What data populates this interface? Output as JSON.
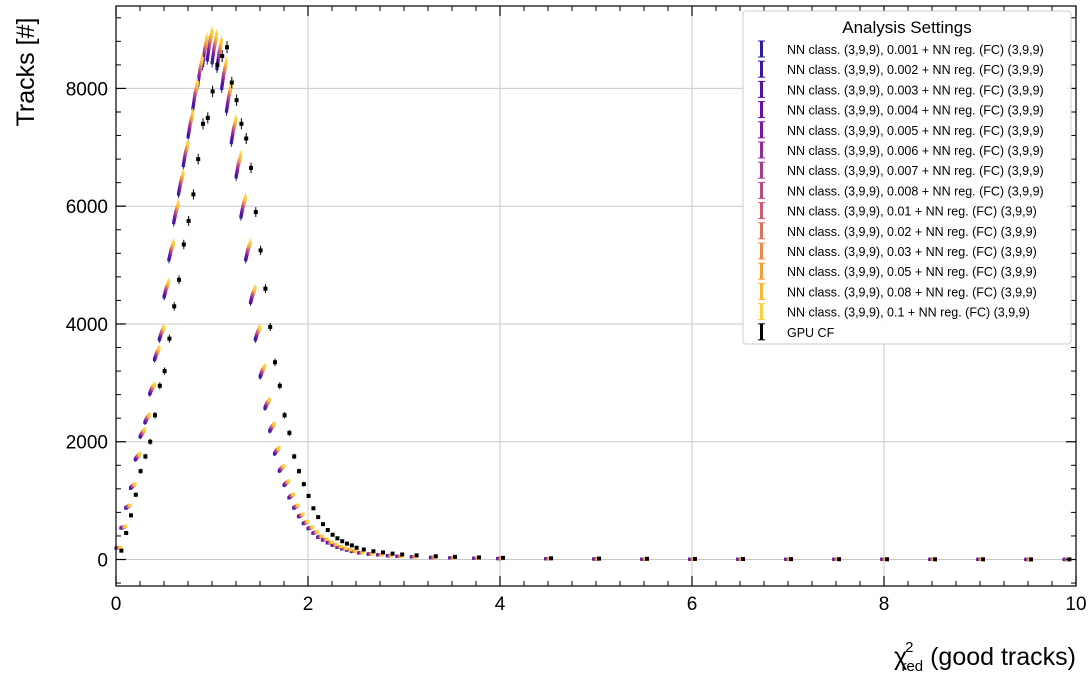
{
  "chart_data": {
    "type": "scatter",
    "xlabel_main": "χ",
    "xlabel_sup": "2",
    "xlabel_sub": "red",
    "xlabel_rest": " (good tracks)",
    "ylabel": "Tracks [#]",
    "xlim": [
      0,
      10
    ],
    "ylim": [
      -450,
      9400
    ],
    "xticks": [
      0,
      2,
      4,
      6,
      8,
      10
    ],
    "yticks": [
      0,
      2000,
      4000,
      6000,
      8000
    ],
    "xtick_labels": [
      "0",
      "2",
      "4",
      "6",
      "8",
      "10"
    ],
    "ytick_labels": [
      "0",
      "2000",
      "4000",
      "6000",
      "8000"
    ],
    "grid": true,
    "legend": {
      "title": "Analysis Settings",
      "placement": "top-right"
    },
    "reference_series": {
      "name": "GPU CF",
      "color": "#000000",
      "x": [
        0.025,
        0.075,
        0.125,
        0.175,
        0.225,
        0.275,
        0.325,
        0.375,
        0.425,
        0.475,
        0.525,
        0.575,
        0.625,
        0.675,
        0.725,
        0.775,
        0.825,
        0.875,
        0.925,
        0.975,
        1.025,
        1.075,
        1.125,
        1.175,
        1.225,
        1.275,
        1.325,
        1.375,
        1.425,
        1.475,
        1.525,
        1.575,
        1.625,
        1.675,
        1.725,
        1.775,
        1.825,
        1.875,
        1.925,
        1.975,
        2.025,
        2.075,
        2.125,
        2.175,
        2.225,
        2.275,
        2.325,
        2.375,
        2.425,
        2.475,
        2.55,
        2.65,
        2.75,
        2.85,
        2.95,
        3.1,
        3.3,
        3.5,
        3.75,
        4.0,
        4.5,
        5.0,
        5.5,
        6.0,
        6.5,
        7.0,
        7.5,
        8.0,
        8.5,
        9.0,
        9.5,
        9.9
      ],
      "values": [
        150,
        450,
        750,
        1100,
        1500,
        1750,
        2000,
        2450,
        2950,
        3200,
        3750,
        4300,
        4750,
        5350,
        5750,
        6200,
        6800,
        7400,
        7500,
        7950,
        8400,
        8550,
        8700,
        8100,
        7800,
        7400,
        7150,
        6650,
        5900,
        5250,
        4600,
        3950,
        3350,
        2950,
        2450,
        2150,
        1750,
        1500,
        1280,
        1080,
        870,
        720,
        600,
        500,
        420,
        360,
        310,
        270,
        240,
        200,
        170,
        140,
        120,
        100,
        85,
        70,
        55,
        45,
        35,
        28,
        20,
        15,
        12,
        10,
        8,
        6,
        5,
        4,
        3,
        3,
        2,
        2
      ]
    },
    "nn_x": [
      0.025,
      0.075,
      0.125,
      0.175,
      0.225,
      0.275,
      0.325,
      0.375,
      0.425,
      0.475,
      0.525,
      0.575,
      0.625,
      0.675,
      0.725,
      0.775,
      0.825,
      0.875,
      0.925,
      0.975,
      1.025,
      1.075,
      1.125,
      1.175,
      1.225,
      1.275,
      1.325,
      1.375,
      1.425,
      1.475,
      1.525,
      1.575,
      1.625,
      1.675,
      1.725,
      1.775,
      1.825,
      1.875,
      1.925,
      1.975,
      2.025,
      2.075,
      2.125,
      2.175,
      2.225,
      2.275,
      2.325,
      2.375,
      2.425,
      2.475,
      2.55,
      2.65,
      2.75,
      2.85,
      2.95,
      3.1,
      3.3,
      3.5,
      3.75,
      4.0,
      4.5,
      5.0,
      5.5,
      6.0,
      6.5,
      7.0,
      7.5,
      8.0,
      8.5,
      9.0,
      9.5,
      9.9
    ],
    "nn_values": [
      200,
      550,
      900,
      1250,
      1750,
      2150,
      2400,
      2900,
      3500,
      3850,
      4600,
      5250,
      5900,
      6400,
      6900,
      7400,
      7900,
      8300,
      8650,
      8750,
      8700,
      8600,
      8250,
      7850,
      7300,
      6700,
      6000,
      5250,
      4500,
      3850,
      3200,
      2650,
      2250,
      1850,
      1550,
      1300,
      1080,
      900,
      750,
      630,
      540,
      460,
      390,
      340,
      290,
      250,
      215,
      185,
      165,
      140,
      115,
      95,
      80,
      67,
      56,
      45,
      35,
      28,
      22,
      17,
      12,
      9,
      7,
      6,
      5,
      4,
      3,
      3,
      2,
      2,
      1,
      1
    ],
    "series": [
      {
        "name": "NN class. (3,9,9), 0.001 + NN reg. (FC) (3,9,9)",
        "color": "#2b1f9e",
        "scale": 0.97
      },
      {
        "name": "NN class. (3,9,9), 0.002 + NN reg. (FC) (3,9,9)",
        "color": "#3f179f",
        "scale": 0.975
      },
      {
        "name": "NN class. (3,9,9), 0.003 + NN reg. (FC) (3,9,9)",
        "color": "#5412a2",
        "scale": 0.98
      },
      {
        "name": "NN class. (3,9,9), 0.004 + NN reg. (FC) (3,9,9)",
        "color": "#6a10a6",
        "scale": 0.985
      },
      {
        "name": "NN class. (3,9,9), 0.005 + NN reg. (FC) (3,9,9)",
        "color": "#7d17a4",
        "scale": 0.99
      },
      {
        "name": "NN class. (3,9,9), 0.006 + NN reg. (FC) (3,9,9)",
        "color": "#922a9c",
        "scale": 0.995
      },
      {
        "name": "NN class. (3,9,9), 0.007 + NN reg. (FC) (3,9,9)",
        "color": "#a53a8f",
        "scale": 1.0
      },
      {
        "name": "NN class. (3,9,9), 0.008 + NN reg. (FC) (3,9,9)",
        "color": "#b84b80",
        "scale": 1.003
      },
      {
        "name": "NN class. (3,9,9), 0.01 + NN reg. (FC) (3,9,9)",
        "color": "#cb5e70",
        "scale": 1.006
      },
      {
        "name": "NN class. (3,9,9), 0.02 + NN reg. (FC) (3,9,9)",
        "color": "#da725f",
        "scale": 1.01
      },
      {
        "name": "NN class. (3,9,9), 0.03 + NN reg. (FC) (3,9,9)",
        "color": "#e7894d",
        "scale": 1.013
      },
      {
        "name": "NN class. (3,9,9), 0.05 + NN reg. (FC) (3,9,9)",
        "color": "#f1a03d",
        "scale": 1.016
      },
      {
        "name": "NN class. (3,9,9), 0.08 + NN reg. (FC) (3,9,9)",
        "color": "#f8b83a",
        "scale": 1.02
      },
      {
        "name": "NN class. (3,9,9), 0.1 + NN reg. (FC) (3,9,9)",
        "color": "#fdd043",
        "scale": 1.025
      }
    ]
  }
}
